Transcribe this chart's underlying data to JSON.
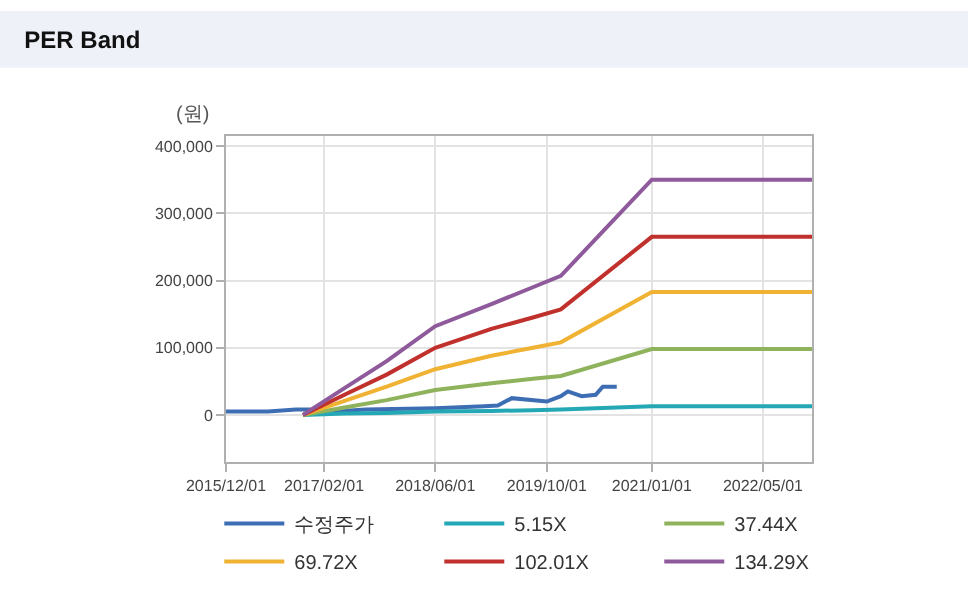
{
  "chart_data": {
    "type": "line",
    "title": "PER Band",
    "ylabel": "(원)",
    "xlim": [
      "2015-12-01",
      "2022-12-01"
    ],
    "xticks": [
      {
        "value": "2015-12-01",
        "label": "2015/12/01"
      },
      {
        "value": "2017-02-01",
        "label": "2017/02/01"
      },
      {
        "value": "2018-06-01",
        "label": "2018/06/01"
      },
      {
        "value": "2019-10-01",
        "label": "2019/10/01"
      },
      {
        "value": "2021-01-01",
        "label": "2021/01/01"
      },
      {
        "value": "2022-05-01",
        "label": "2022/05/01"
      }
    ],
    "ylim": [
      -70000,
      415000
    ],
    "yticks": [
      {
        "value": 0,
        "label": "0"
      },
      {
        "value": 100000,
        "label": "100,000"
      },
      {
        "value": 200000,
        "label": "200,000"
      },
      {
        "value": 300000,
        "label": "300,000"
      },
      {
        "value": 400000,
        "label": "400,000"
      }
    ],
    "grid": true,
    "legend": "bottom",
    "marker": "none",
    "line_style": "solid",
    "series": [
      {
        "name": "수정주가",
        "color": "#3d6eb4",
        "x": [
          "2015-12-01",
          "2016-06-01",
          "2016-10-01",
          "2016-12-01",
          "2017-02-01",
          "2017-08-01",
          "2018-06-01",
          "2019-01-01",
          "2019-03-01",
          "2019-05-01",
          "2019-10-01",
          "2019-12-01",
          "2020-01-01",
          "2020-03-01",
          "2020-05-01",
          "2020-06-01",
          "2020-08-01"
        ],
        "values": [
          5000,
          5000,
          8000,
          8000,
          4000,
          8000,
          10000,
          13000,
          14000,
          25000,
          20000,
          28000,
          35000,
          28000,
          30000,
          42000,
          42000
        ]
      },
      {
        "name": "5.15X",
        "color": "#25a8b5",
        "x": [
          "2016-11-01",
          "2017-05-01",
          "2017-11-01",
          "2018-06-01",
          "2019-02-01",
          "2019-08-01",
          "2019-12-01",
          "2021-01-01",
          "2022-12-01"
        ],
        "values": [
          0,
          2000,
          3000,
          5000,
          6000,
          7000,
          8000,
          13000,
          13000
        ]
      },
      {
        "name": "37.44X",
        "color": "#8fb35c",
        "x": [
          "2016-11-01",
          "2017-05-01",
          "2017-11-01",
          "2018-06-01",
          "2019-02-01",
          "2019-08-01",
          "2019-12-01",
          "2021-01-01",
          "2022-12-01"
        ],
        "values": [
          0,
          11000,
          22000,
          37000,
          47000,
          54000,
          58000,
          98000,
          98000
        ]
      },
      {
        "name": "69.72X",
        "color": "#f0b232",
        "x": [
          "2016-11-01",
          "2017-05-01",
          "2017-11-01",
          "2018-06-01",
          "2019-02-01",
          "2019-08-01",
          "2019-12-01",
          "2021-01-01",
          "2022-12-01"
        ],
        "values": [
          0,
          21000,
          42000,
          68000,
          88000,
          100000,
          108000,
          183000,
          183000
        ]
      },
      {
        "name": "102.01X",
        "color": "#c0302c",
        "x": [
          "2016-11-01",
          "2017-05-01",
          "2017-11-01",
          "2018-06-01",
          "2019-02-01",
          "2019-08-01",
          "2019-12-01",
          "2021-01-01",
          "2022-12-01"
        ],
        "values": [
          0,
          30000,
          60000,
          100000,
          128000,
          145000,
          157000,
          265000,
          265000
        ]
      },
      {
        "name": "134.29X",
        "color": "#8e5a9b",
        "x": [
          "2016-11-01",
          "2017-05-01",
          "2017-11-01",
          "2018-06-01",
          "2019-02-01",
          "2019-08-01",
          "2019-12-01",
          "2021-01-01",
          "2022-12-01"
        ],
        "values": [
          0,
          40000,
          80000,
          132000,
          165000,
          190000,
          207000,
          350000,
          350000
        ]
      }
    ]
  }
}
